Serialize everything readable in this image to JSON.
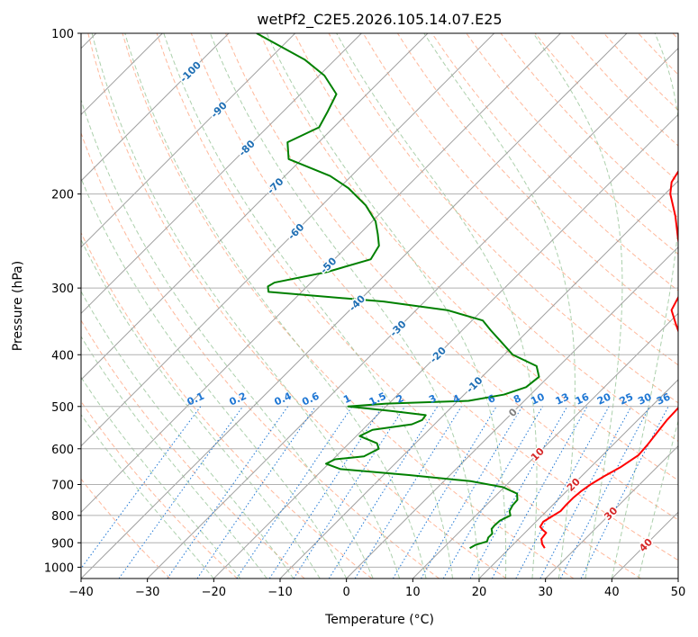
{
  "chart_data": {
    "type": "line",
    "title": "wetPf2_C2E5.2026.105.14.07.E25",
    "xlabel": "Temperature (°C)",
    "ylabel": "Pressure (hPa)",
    "xlim": [
      -40,
      50
    ],
    "ylim": [
      1050,
      100
    ],
    "y_scale": "log",
    "grid": true,
    "x_ticks": [
      -40,
      -30,
      -20,
      -10,
      0,
      10,
      20,
      30,
      40,
      50
    ],
    "x_tick_labels": [
      "−40",
      "−30",
      "−20",
      "−10",
      "0",
      "10",
      "20",
      "30",
      "40",
      "50"
    ],
    "y_ticks": [
      100,
      200,
      300,
      400,
      500,
      600,
      700,
      800,
      900,
      1000
    ],
    "y_tick_labels": [
      "100",
      "200",
      "300",
      "400",
      "500",
      "600",
      "700",
      "800",
      "900",
      "1000"
    ],
    "colors": {
      "temperature": "#ff0000",
      "dewpoint": "#008000",
      "isotherm": "#a0a0a0",
      "dry_adiabat": "#ffa07a",
      "moist_adiabat": "#90c090",
      "mixing_ratio": "#1f77d4",
      "isotherm_label": "#1f6fb4",
      "warm_label": "#d62728",
      "zero_label": "#808080"
    },
    "series": [
      {
        "name": "Temperature",
        "pressure": [
          921,
          905,
          885,
          862,
          852,
          840,
          822,
          803,
          785,
          765,
          742,
          720,
          700,
          676,
          650,
          617,
          590,
          560,
          530,
          510,
          492,
          470,
          442,
          410,
          376,
          350,
          330,
          305,
          290,
          275,
          258,
          240,
          220,
          200,
          190,
          176,
          165,
          150,
          138,
          128,
          117,
          108,
          100
        ],
        "value": [
          25.3,
          24.3,
          23.4,
          23.2,
          22.3,
          21.4,
          21.1,
          21.6,
          22.1,
          22.0,
          22.0,
          22.2,
          22.6,
          23.4,
          24.5,
          25.4,
          25.2,
          24.8,
          24.4,
          24.3,
          24.2,
          23.5,
          22.3,
          19.0,
          14.6,
          11.2,
          8.5,
          7.2,
          5.9,
          3.9,
          1.2,
          -1.7,
          -5.1,
          -9.2,
          -10.8,
          -11.8,
          -11.2,
          -12.6,
          -13.9,
          -13.7,
          -16.0,
          -18.1,
          -20.4
        ]
      },
      {
        "name": "Dewpoint",
        "pressure": [
          921,
          908,
          895,
          880,
          865,
          848,
          835,
          818,
          800,
          785,
          766,
          748,
          728,
          708,
          690,
          672,
          655,
          640,
          628,
          620,
          600,
          586,
          568,
          553,
          540,
          530,
          519,
          510,
          500,
          494,
          488,
          475,
          460,
          440,
          420,
          400,
          380,
          360,
          345,
          330,
          318,
          305,
          298,
          293,
          280,
          265,
          250,
          238,
          225,
          210,
          195,
          185,
          172,
          160,
          150,
          140,
          130,
          120,
          112,
          100
        ],
        "value": [
          14.0,
          14.4,
          15.6,
          15.2,
          15.2,
          14.4,
          14.3,
          14.4,
          15.2,
          14.4,
          14.0,
          13.9,
          12.9,
          9.8,
          4.0,
          -6.2,
          -17.4,
          -20.4,
          -19.7,
          -15.8,
          -14.7,
          -15.8,
          -19.5,
          -18.5,
          -13.4,
          -12.5,
          -12.7,
          -18.4,
          -25.7,
          -20.4,
          -8.4,
          -4.0,
          -1.8,
          -1.4,
          -3.4,
          -8.7,
          -12.1,
          -15.7,
          -18.4,
          -25.3,
          -36.2,
          -55.0,
          -55.9,
          -55.5,
          -49.2,
          -44.5,
          -45.3,
          -47.2,
          -49.5,
          -53.4,
          -58.6,
          -63.2,
          -72.0,
          -74.7,
          -72.2,
          -73.3,
          -74.6,
          -79.2,
          -84.6,
          -95.8
        ]
      }
    ],
    "isotherm_labels": [
      "-100",
      "-90",
      "-80",
      "-70",
      "-60",
      "-50",
      "-40",
      "-30",
      "-20",
      "-10",
      "0",
      "10",
      "20",
      "30",
      "40"
    ],
    "mixing_ratio_labels": [
      "0.1",
      "0.2",
      "0.4",
      "0.6",
      "1",
      "1.5",
      "2",
      "3",
      "4",
      "6",
      "8",
      "10",
      "13",
      "16",
      "20",
      "25",
      "30",
      "36"
    ]
  }
}
